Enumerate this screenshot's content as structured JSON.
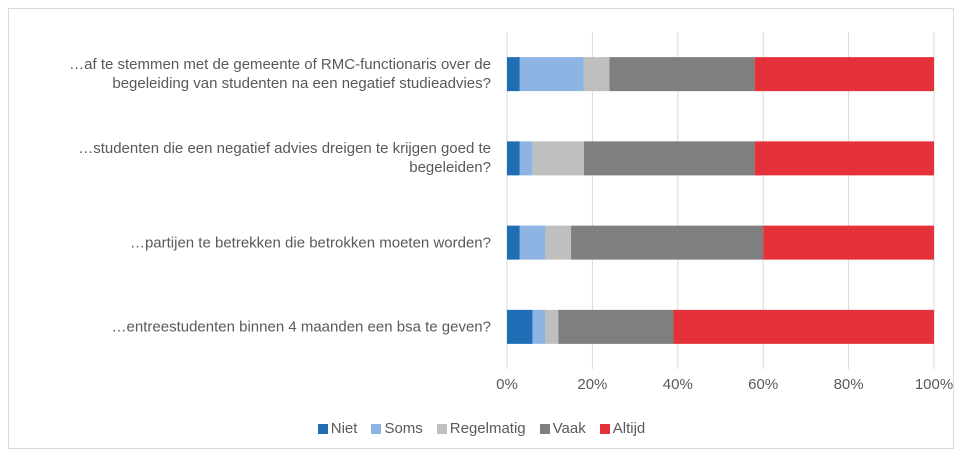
{
  "chart_data": {
    "type": "stacked_barh",
    "categories": [
      "…af te stemmen met de gemeente of RMC-functionaris over de begeleiding van studenten na een negatief studieadvies?",
      "…studenten die een negatief advies dreigen te krijgen goed te begeleiden?",
      "…partijen te betrekken die betrokken moeten worden?",
      "…entreestudenten binnen 4 maanden een bsa te geven?"
    ],
    "series": [
      {
        "name": "Niet",
        "color": "#1f6eb5",
        "values": [
          3,
          3,
          3,
          6
        ]
      },
      {
        "name": "Soms",
        "color": "#8db4e2",
        "values": [
          15,
          3,
          6,
          3
        ]
      },
      {
        "name": "Regelmatig",
        "color": "#bfbfbf",
        "values": [
          6,
          12,
          6,
          3
        ]
      },
      {
        "name": "Vaak",
        "color": "#7f7f7f",
        "values": [
          34,
          40,
          45,
          27
        ]
      },
      {
        "name": "Altijd",
        "color": "#e5323a",
        "values": [
          42,
          42,
          40,
          61
        ]
      }
    ],
    "xlim": [
      0,
      100
    ],
    "xticks": [
      {
        "value": 0,
        "label": "0%"
      },
      {
        "value": 20,
        "label": "20%"
      },
      {
        "value": 40,
        "label": "40%"
      },
      {
        "value": 60,
        "label": "60%"
      },
      {
        "value": 80,
        "label": "80%"
      },
      {
        "value": 100,
        "label": "100%"
      }
    ],
    "grid": true,
    "legend": "bottom"
  }
}
